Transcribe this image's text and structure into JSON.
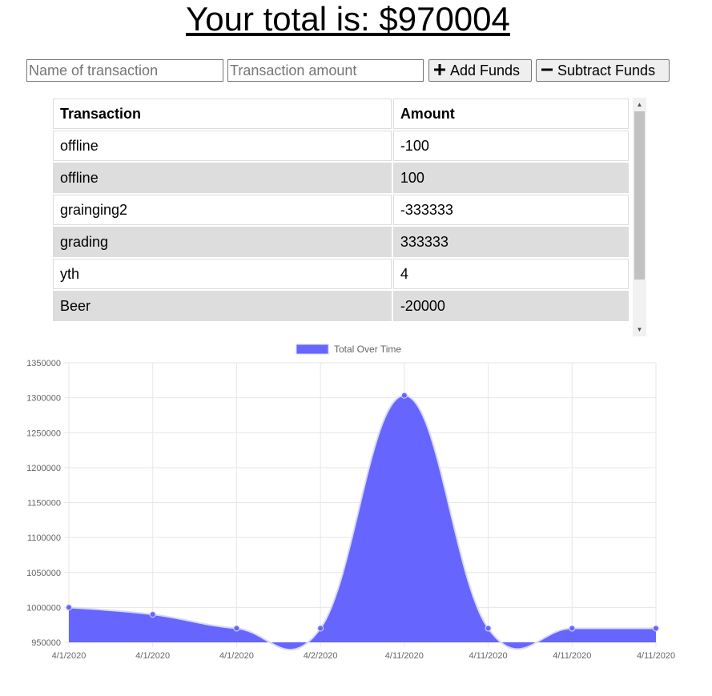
{
  "header": {
    "total_text": "Your total is: $970004"
  },
  "form": {
    "name_placeholder": "Name of transaction",
    "amount_placeholder": "Transaction amount",
    "add_label": "Add Funds",
    "subtract_label": "Subtract Funds",
    "add_icon": "plus-icon",
    "subtract_icon": "minus-icon"
  },
  "table": {
    "headers": [
      "Transaction",
      "Amount"
    ],
    "rows": [
      {
        "name": "offline",
        "amount": "-100"
      },
      {
        "name": "offline",
        "amount": "100"
      },
      {
        "name": "grainging2",
        "amount": "-333333"
      },
      {
        "name": "grading",
        "amount": "333333"
      },
      {
        "name": "yth",
        "amount": "4"
      },
      {
        "name": "Beer",
        "amount": "-20000"
      }
    ]
  },
  "chart_data": {
    "type": "area",
    "title": "",
    "xlabel": "",
    "ylabel": "",
    "x": [
      "4/1/2020",
      "4/1/2020",
      "4/1/2020",
      "4/2/2020",
      "4/11/2020",
      "4/11/2020",
      "4/11/2020",
      "4/11/2020"
    ],
    "series": [
      {
        "name": "Total Over Time",
        "values": [
          1000000,
          990000,
          970000,
          970000,
          1303333,
          970000,
          970004,
          970004
        ],
        "color": "#6666ff"
      }
    ],
    "ylim": [
      950000,
      1350000
    ],
    "yticks": [
      950000,
      1000000,
      1050000,
      1100000,
      1150000,
      1200000,
      1250000,
      1300000,
      1350000
    ],
    "grid": true,
    "legend": "top-center"
  }
}
